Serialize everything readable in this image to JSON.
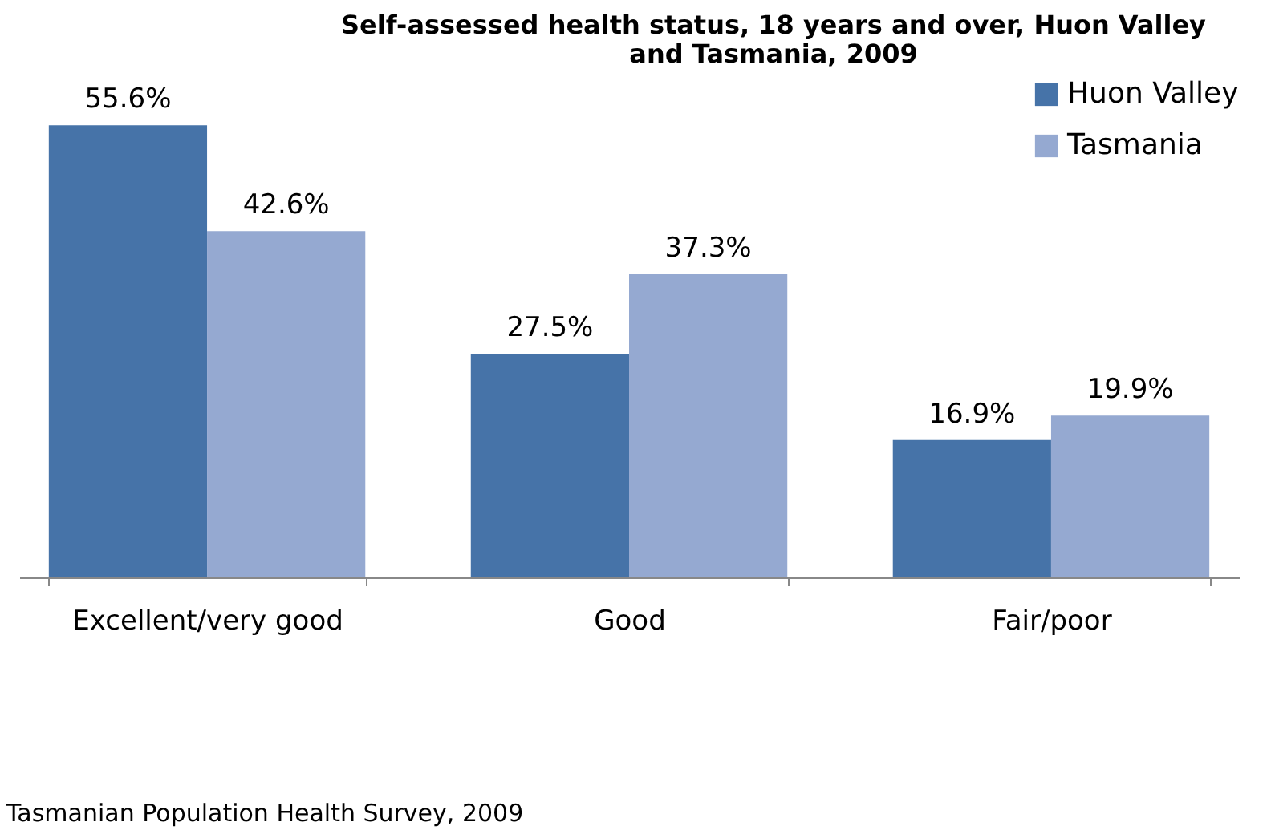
{
  "chart_data": {
    "type": "bar",
    "title": "Self-assessed health status, 18 years and over, Huon Valley and Tasmania, 2009",
    "categories": [
      "Excellent/very good",
      "Good",
      "Fair/poor"
    ],
    "series": [
      {
        "name": "Huon Valley",
        "color": "#4673a8",
        "values": [
          55.6,
          27.5,
          16.9
        ],
        "value_labels": [
          "55.6%",
          "27.5%",
          "16.9%"
        ]
      },
      {
        "name": "Tasmania",
        "color": "#95a9d1",
        "values": [
          42.6,
          37.3,
          19.9
        ],
        "value_labels": [
          "42.6%",
          "37.3%",
          "19.9%"
        ]
      }
    ],
    "legend": "top right",
    "annotations": [
      "Tasmanian Population Health Survey, 2009"
    ]
  }
}
